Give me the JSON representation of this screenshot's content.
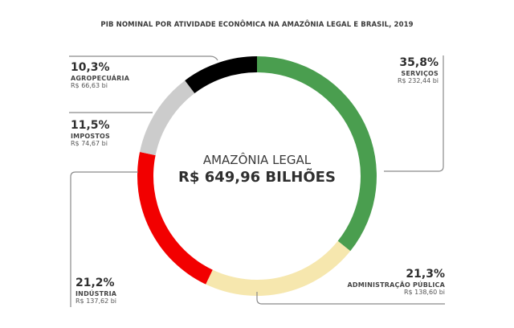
{
  "title": "PIB NOMINAL POR ATIVIDADE ECONÔMICA NA AMAZÔNIA LEGAL E BRASIL, 2019",
  "center": {
    "region": "AMAZÔNIA LEGAL",
    "total": "R$ 649,96 BILHÕES"
  },
  "segments": [
    {
      "pct": "35,8%",
      "name": "SERVIÇOS",
      "value": "R$ 232,44 bi",
      "color": "#4a9e4f"
    },
    {
      "pct": "21,3%",
      "name": "ADMINISTRAÇÃO PÚBLICA",
      "value": "R$ 138,60 bi",
      "color": "#f6e7ae"
    },
    {
      "pct": "21,2%",
      "name": "INDÚSTRIA",
      "value": "R$ 137,62 bi",
      "color": "#f20000"
    },
    {
      "pct": "11,5%",
      "name": "IMPOSTOS",
      "value": "R$ 74,67 bi",
      "color": "#cccccc"
    },
    {
      "pct": "10,3%",
      "name": "AGROPECUÁRIA",
      "value": "R$ 66,63 bi",
      "color": "#000000"
    }
  ],
  "chart_data": {
    "type": "pie",
    "variant": "donut",
    "title": "PIB NOMINAL POR ATIVIDADE ECONÔMICA NA AMAZÔNIA LEGAL E BRASIL, 2019",
    "center_label": "AMAZÔNIA LEGAL — R$ 649,96 BILHÕES",
    "categories": [
      "Serviços",
      "Administração Pública",
      "Indústria",
      "Impostos",
      "Agropecuária"
    ],
    "values": [
      35.8,
      21.3,
      21.2,
      11.5,
      10.3
    ],
    "values_brl_billions": [
      232.44,
      138.6,
      137.62,
      74.67,
      66.63
    ],
    "colors": [
      "#4a9e4f",
      "#f6e7ae",
      "#f20000",
      "#cccccc",
      "#000000"
    ],
    "start_angle": "top, clockwise",
    "legend": "callout labels with leader lines"
  }
}
